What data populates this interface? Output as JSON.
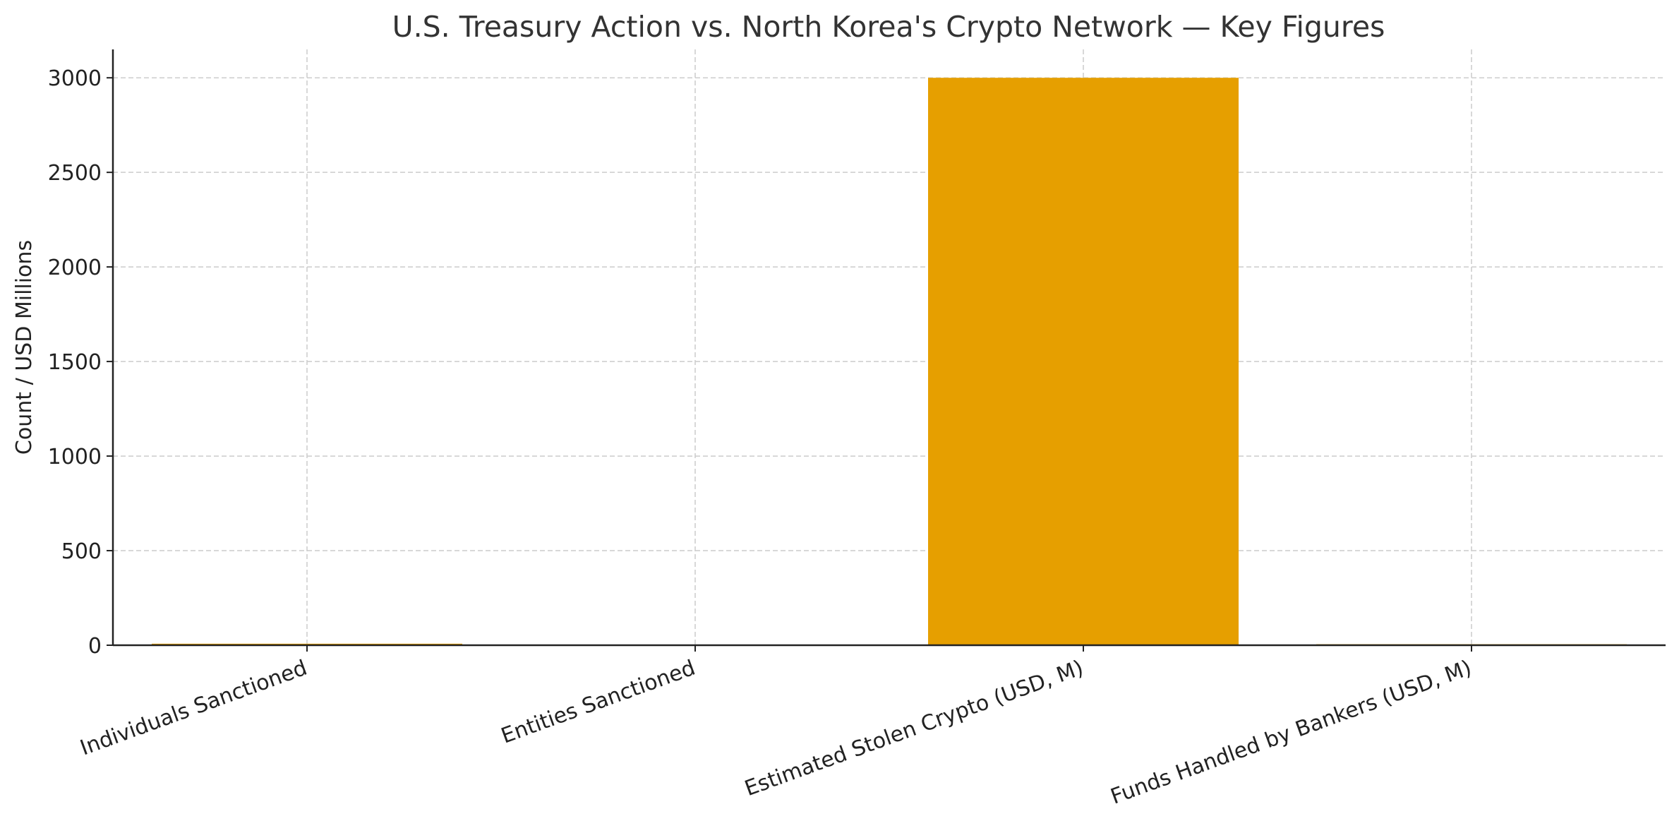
{
  "chart_data": {
    "type": "bar",
    "title": "U.S. Treasury Action vs. North Korea's Crypto Network — Key Figures",
    "xlabel": "",
    "ylabel": "Count / USD Millions",
    "categories": [
      "Individuals Sanctioned",
      "Entities Sanctioned",
      "Estimated Stolen Crypto (USD, M)",
      "Funds Handled by Bankers (USD, M)"
    ],
    "values": [
      8,
      2,
      3000,
      5.3
    ],
    "ylim": [
      0,
      3150
    ],
    "yticks": [
      0,
      500,
      1000,
      1500,
      2000,
      2500,
      3000
    ],
    "grid": true,
    "legend": "none",
    "bar_color": "#E69F00"
  }
}
